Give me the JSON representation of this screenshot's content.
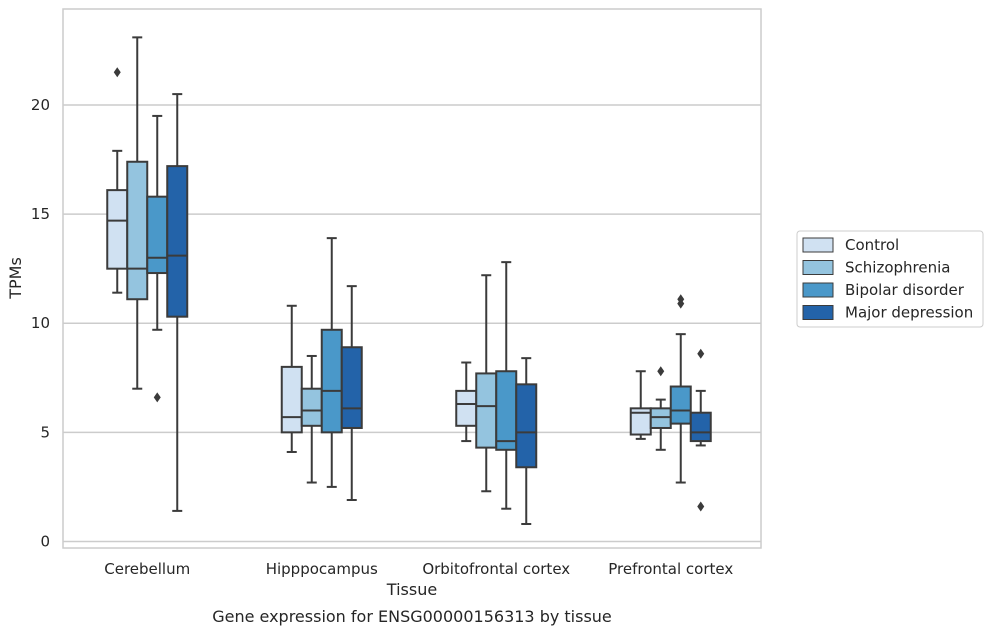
{
  "caption": "Gene expression for ENSG00000156313 by tissue",
  "chart_data": {
    "type": "boxplot",
    "xlabel": "Tissue",
    "ylabel": "TPMs",
    "ylim": [
      -0.3,
      24.4
    ],
    "yticks": [
      0,
      5,
      10,
      15,
      20
    ],
    "grid": "horizontal",
    "legend_position": "right",
    "categories": [
      "Cerebellum",
      "Hipppocampus",
      "Orbitofrontal cortex",
      "Prefrontal cortex"
    ],
    "series": [
      {
        "name": "Control",
        "color": "#d0e1f2",
        "boxes": [
          {
            "whisker_low": 11.4,
            "q1": 12.5,
            "median": 14.7,
            "q3": 16.1,
            "whisker_high": 17.9,
            "outliers": [
              21.5
            ]
          },
          {
            "whisker_low": 4.1,
            "q1": 5.0,
            "median": 5.7,
            "q3": 8.0,
            "whisker_high": 10.8,
            "outliers": []
          },
          {
            "whisker_low": 4.6,
            "q1": 5.3,
            "median": 6.3,
            "q3": 6.9,
            "whisker_high": 8.2,
            "outliers": []
          },
          {
            "whisker_low": 4.7,
            "q1": 4.9,
            "median": 5.9,
            "q3": 6.1,
            "whisker_high": 7.8,
            "outliers": []
          }
        ]
      },
      {
        "name": "Schizophrenia",
        "color": "#94c4df",
        "boxes": [
          {
            "whisker_low": 7.0,
            "q1": 11.1,
            "median": 12.5,
            "q3": 17.4,
            "whisker_high": 23.1,
            "outliers": []
          },
          {
            "whisker_low": 2.7,
            "q1": 5.3,
            "median": 6.0,
            "q3": 7.0,
            "whisker_high": 8.5,
            "outliers": []
          },
          {
            "whisker_low": 2.3,
            "q1": 4.3,
            "median": 6.2,
            "q3": 7.7,
            "whisker_high": 12.2,
            "outliers": []
          },
          {
            "whisker_low": 4.2,
            "q1": 5.2,
            "median": 5.7,
            "q3": 6.1,
            "whisker_high": 6.5,
            "outliers": [
              7.8
            ]
          }
        ]
      },
      {
        "name": "Bipolar disorder",
        "color": "#4a98c9",
        "boxes": [
          {
            "whisker_low": 9.7,
            "q1": 12.3,
            "median": 13.0,
            "q3": 15.8,
            "whisker_high": 19.5,
            "outliers": [
              6.6
            ]
          },
          {
            "whisker_low": 2.5,
            "q1": 5.0,
            "median": 6.9,
            "q3": 9.7,
            "whisker_high": 13.9,
            "outliers": []
          },
          {
            "whisker_low": 1.5,
            "q1": 4.2,
            "median": 4.6,
            "q3": 7.8,
            "whisker_high": 12.8,
            "outliers": []
          },
          {
            "whisker_low": 2.7,
            "q1": 5.4,
            "median": 6.0,
            "q3": 7.1,
            "whisker_high": 9.5,
            "outliers": [
              10.9,
              11.1
            ]
          }
        ]
      },
      {
        "name": "Major depression",
        "color": "#2363a9",
        "boxes": [
          {
            "whisker_low": 1.4,
            "q1": 10.3,
            "median": 13.1,
            "q3": 17.2,
            "whisker_high": 20.5,
            "outliers": []
          },
          {
            "whisker_low": 1.9,
            "q1": 5.2,
            "median": 6.1,
            "q3": 8.9,
            "whisker_high": 11.7,
            "outliers": []
          },
          {
            "whisker_low": 0.8,
            "q1": 3.4,
            "median": 5.0,
            "q3": 7.2,
            "whisker_high": 8.4,
            "outliers": []
          },
          {
            "whisker_low": 4.4,
            "q1": 4.6,
            "median": 5.0,
            "q3": 5.9,
            "whisker_high": 6.9,
            "outliers": [
              8.6,
              1.6
            ]
          }
        ]
      }
    ]
  }
}
